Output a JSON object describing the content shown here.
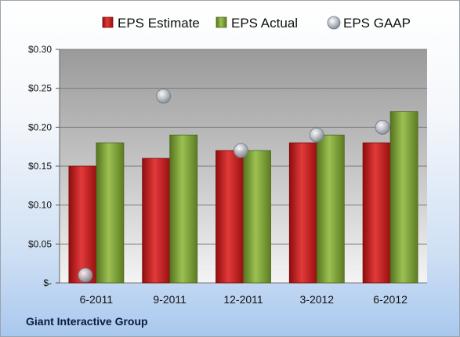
{
  "company_name": "Giant Interactive Group",
  "chart_data": {
    "type": "bar",
    "categories": [
      "6-2011",
      "9-2011",
      "12-2011",
      "3-2012",
      "6-2012"
    ],
    "series": [
      {
        "name": "EPS Estimate",
        "kind": "bar",
        "color": "#cc1f1f",
        "values": [
          0.15,
          0.16,
          0.17,
          0.18,
          0.18
        ]
      },
      {
        "name": "EPS Actual",
        "kind": "bar",
        "color": "#7fa23a",
        "values": [
          0.18,
          0.19,
          0.17,
          0.19,
          0.22
        ]
      },
      {
        "name": "EPS GAAP",
        "kind": "marker",
        "color": "#b8bec6",
        "values": [
          0.01,
          0.24,
          0.17,
          0.19,
          0.2
        ]
      }
    ],
    "y_ticks": [
      {
        "value": 0,
        "label": "$-"
      },
      {
        "value": 0.05,
        "label": "$0.05"
      },
      {
        "value": 0.1,
        "label": "$0.10"
      },
      {
        "value": 0.15,
        "label": "$0.15"
      },
      {
        "value": 0.2,
        "label": "$0.20"
      },
      {
        "value": 0.25,
        "label": "$0.25"
      },
      {
        "value": 0.3,
        "label": "$0.30"
      }
    ],
    "ylim": [
      0,
      0.3
    ],
    "grid": true,
    "legend_position": "top",
    "title": "",
    "xlabel": "",
    "ylabel": ""
  }
}
